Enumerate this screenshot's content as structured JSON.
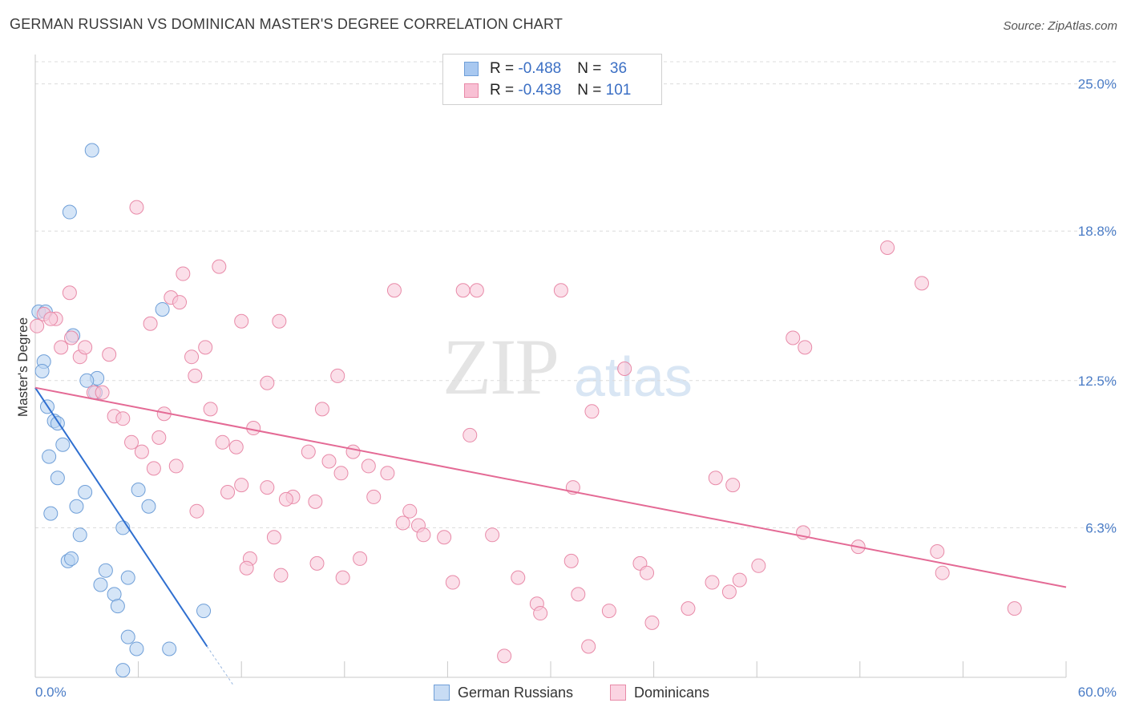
{
  "title": "GERMAN RUSSIAN VS DOMINICAN MASTER'S DEGREE CORRELATION CHART",
  "source": "Source: ZipAtlas.com",
  "watermark": {
    "zip": "ZIP",
    "atlas": "atlas"
  },
  "legend": {
    "rows": [
      {
        "r_label": "R = ",
        "r_value": "-0.488",
        "n_label": "N = ",
        "n_value": " 36",
        "color": "#a8c8f0",
        "border": "#6f9fd8"
      },
      {
        "r_label": "R = ",
        "r_value": "-0.438",
        "n_label": "N = ",
        "n_value": "101",
        "color": "#f8c0d4",
        "border": "#e88aa8"
      }
    ]
  },
  "bottom_legend": [
    {
      "label": "German Russians",
      "color": "#c8dcf4",
      "border": "#6f9fd8"
    },
    {
      "label": "Dominicans",
      "color": "#fbd4e2",
      "border": "#e88aa8"
    }
  ],
  "chart_data": {
    "type": "scatter",
    "title": "GERMAN RUSSIAN VS DOMINICAN MASTER'S DEGREE CORRELATION CHART",
    "xlabel": "",
    "ylabel": "Master's Degree",
    "xlim": [
      0,
      60
    ],
    "ylim": [
      0,
      26
    ],
    "x_tick_labels": [
      "0.0%",
      "60.0%"
    ],
    "y_ticks": [
      6.3,
      12.5,
      18.8,
      25.0
    ],
    "y_tick_labels": [
      "6.3%",
      "12.5%",
      "18.8%",
      "25.0%"
    ],
    "grid": true,
    "legend_position": "top-center",
    "series": [
      {
        "name": "German Russians",
        "color": "#6f9fd8",
        "fill": "#b9d3f2",
        "trend": {
          "x": [
            0.0,
            10.0
          ],
          "y": [
            12.2,
            1.3
          ],
          "color": "#2f6fd0",
          "dash_to": [
            11.5,
            -0.3
          ]
        },
        "points": [
          [
            3.3,
            22.2
          ],
          [
            2.0,
            19.6
          ],
          [
            0.2,
            15.4
          ],
          [
            7.4,
            15.5
          ],
          [
            0.5,
            13.3
          ],
          [
            0.4,
            12.9
          ],
          [
            2.2,
            14.4
          ],
          [
            3.6,
            12.6
          ],
          [
            3.0,
            12.5
          ],
          [
            3.5,
            12.0
          ],
          [
            0.7,
            11.4
          ],
          [
            1.1,
            10.8
          ],
          [
            1.3,
            10.7
          ],
          [
            0.8,
            9.3
          ],
          [
            1.6,
            9.8
          ],
          [
            1.3,
            8.4
          ],
          [
            2.9,
            7.8
          ],
          [
            6.0,
            7.9
          ],
          [
            2.4,
            7.2
          ],
          [
            6.6,
            7.2
          ],
          [
            0.9,
            6.9
          ],
          [
            5.1,
            6.3
          ],
          [
            2.6,
            6.0
          ],
          [
            1.9,
            4.9
          ],
          [
            2.1,
            5.0
          ],
          [
            4.1,
            4.5
          ],
          [
            3.8,
            3.9
          ],
          [
            5.4,
            4.2
          ],
          [
            4.6,
            3.5
          ],
          [
            4.8,
            3.0
          ],
          [
            9.8,
            2.8
          ],
          [
            5.4,
            1.7
          ],
          [
            5.9,
            1.2
          ],
          [
            7.8,
            1.2
          ],
          [
            5.1,
            0.3
          ],
          [
            0.6,
            15.4
          ]
        ]
      },
      {
        "name": "Dominicans",
        "color": "#e88aa8",
        "fill": "#f9cadb",
        "trend": {
          "x": [
            0.0,
            60.0
          ],
          "y": [
            12.2,
            3.8
          ],
          "color": "#e46a95"
        },
        "points": [
          [
            0.1,
            14.8
          ],
          [
            0.5,
            15.3
          ],
          [
            1.2,
            15.1
          ],
          [
            0.9,
            15.1
          ],
          [
            2.0,
            16.2
          ],
          [
            5.9,
            19.8
          ],
          [
            8.6,
            17.0
          ],
          [
            10.7,
            17.3
          ],
          [
            7.9,
            16.0
          ],
          [
            14.2,
            15.0
          ],
          [
            20.9,
            16.3
          ],
          [
            24.9,
            16.3
          ],
          [
            25.7,
            16.3
          ],
          [
            30.6,
            16.3
          ],
          [
            49.6,
            18.1
          ],
          [
            51.6,
            16.6
          ],
          [
            1.5,
            13.9
          ],
          [
            2.6,
            13.5
          ],
          [
            2.9,
            13.9
          ],
          [
            4.3,
            13.6
          ],
          [
            6.7,
            14.9
          ],
          [
            9.9,
            13.9
          ],
          [
            9.1,
            13.5
          ],
          [
            9.3,
            12.7
          ],
          [
            13.5,
            12.4
          ],
          [
            17.6,
            12.7
          ],
          [
            34.3,
            13.0
          ],
          [
            44.1,
            14.3
          ],
          [
            44.8,
            13.9
          ],
          [
            3.4,
            12.0
          ],
          [
            3.9,
            12.0
          ],
          [
            4.6,
            11.0
          ],
          [
            5.1,
            10.9
          ],
          [
            7.5,
            11.1
          ],
          [
            10.2,
            11.3
          ],
          [
            16.7,
            11.3
          ],
          [
            32.4,
            11.2
          ],
          [
            12.7,
            10.5
          ],
          [
            25.3,
            10.2
          ],
          [
            5.6,
            9.9
          ],
          [
            7.2,
            10.1
          ],
          [
            10.9,
            9.9
          ],
          [
            11.7,
            9.7
          ],
          [
            6.2,
            9.5
          ],
          [
            15.9,
            9.5
          ],
          [
            18.5,
            9.5
          ],
          [
            17.1,
            9.1
          ],
          [
            19.4,
            8.9
          ],
          [
            6.9,
            8.8
          ],
          [
            8.2,
            8.9
          ],
          [
            17.8,
            8.6
          ],
          [
            20.5,
            8.6
          ],
          [
            39.6,
            8.4
          ],
          [
            40.6,
            8.1
          ],
          [
            12.0,
            8.1
          ],
          [
            13.5,
            8.0
          ],
          [
            11.2,
            7.8
          ],
          [
            31.3,
            8.0
          ],
          [
            15.0,
            7.6
          ],
          [
            14.6,
            7.5
          ],
          [
            16.3,
            7.4
          ],
          [
            19.7,
            7.6
          ],
          [
            9.4,
            7.0
          ],
          [
            21.8,
            7.0
          ],
          [
            21.4,
            6.5
          ],
          [
            22.3,
            6.4
          ],
          [
            13.9,
            5.9
          ],
          [
            22.6,
            6.0
          ],
          [
            23.8,
            5.9
          ],
          [
            26.6,
            6.0
          ],
          [
            44.7,
            6.1
          ],
          [
            47.9,
            5.5
          ],
          [
            52.5,
            5.3
          ],
          [
            12.5,
            5.0
          ],
          [
            12.3,
            4.6
          ],
          [
            16.4,
            4.8
          ],
          [
            18.9,
            5.0
          ],
          [
            31.2,
            4.9
          ],
          [
            35.2,
            4.8
          ],
          [
            35.6,
            4.4
          ],
          [
            42.1,
            4.7
          ],
          [
            14.3,
            4.3
          ],
          [
            17.9,
            4.2
          ],
          [
            24.3,
            4.0
          ],
          [
            28.1,
            4.2
          ],
          [
            39.4,
            4.0
          ],
          [
            41.0,
            4.1
          ],
          [
            52.8,
            4.4
          ],
          [
            40.4,
            3.6
          ],
          [
            31.6,
            3.5
          ],
          [
            29.2,
            3.1
          ],
          [
            29.4,
            2.7
          ],
          [
            33.4,
            2.8
          ],
          [
            35.9,
            2.3
          ],
          [
            38.0,
            2.9
          ],
          [
            57.0,
            2.9
          ],
          [
            32.2,
            1.3
          ],
          [
            27.3,
            0.9
          ],
          [
            2.1,
            14.3
          ],
          [
            8.4,
            15.8
          ],
          [
            12.0,
            15.0
          ]
        ]
      }
    ]
  }
}
